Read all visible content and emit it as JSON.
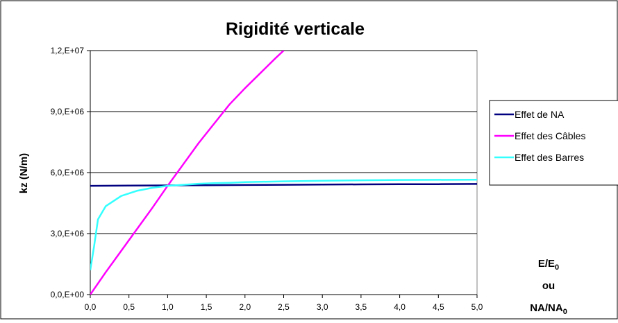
{
  "chart_data": {
    "type": "line",
    "title": "Rigidité verticale",
    "ylabel": "kz (N/m)",
    "xlabel_lines": [
      {
        "main": "E/E",
        "sub": "0"
      },
      {
        "main": "ou",
        "sub": ""
      },
      {
        "main": "NA/NA",
        "sub": "0"
      }
    ],
    "xlim": [
      0,
      5
    ],
    "ylim": [
      0,
      12000000
    ],
    "x_ticks": [
      0,
      0.5,
      1,
      1.5,
      2,
      2.5,
      3,
      3.5,
      4,
      4.5,
      5
    ],
    "x_tick_labels": [
      "0,0",
      "0,5",
      "1,0",
      "1,5",
      "2,0",
      "2,5",
      "3,0",
      "3,5",
      "4,0",
      "4,5",
      "5,0"
    ],
    "y_ticks": [
      0,
      3000000,
      6000000,
      9000000,
      12000000
    ],
    "y_tick_labels": [
      "0,0,E+00",
      "3,0,E+06",
      "6,0,E+06",
      "9,0,E+06",
      "1,2,E+07"
    ],
    "grid": "horizontal",
    "legend_position": "right",
    "series": [
      {
        "name": "Effet de NA",
        "color": "#000080",
        "x": [
          0,
          0.5,
          1,
          1.5,
          2,
          2.5,
          3,
          3.5,
          4,
          4.5,
          5
        ],
        "y": [
          5350000,
          5360000,
          5370000,
          5380000,
          5390000,
          5400000,
          5410000,
          5420000,
          5430000,
          5430000,
          5440000
        ]
      },
      {
        "name": "Effet des Câbles",
        "color": "#ff00ff",
        "x": [
          0,
          0.2,
          0.4,
          0.6,
          0.8,
          1.0,
          1.2,
          1.4,
          1.6,
          1.8,
          2.0,
          2.2,
          2.4,
          2.5
        ],
        "y": [
          0,
          1100000,
          2150000,
          3200000,
          4250000,
          5350000,
          6400000,
          7450000,
          8400000,
          9350000,
          10150000,
          10900000,
          11650000,
          12000000
        ]
      },
      {
        "name": "Effet des Barres",
        "color": "#33ffff",
        "x": [
          0,
          0.05,
          0.1,
          0.2,
          0.4,
          0.6,
          0.8,
          1.0,
          1.2,
          1.4,
          1.6,
          1.8,
          2.0,
          2.5,
          3.0,
          3.5,
          4.0,
          5.0
        ],
        "y": [
          1200000,
          2400000,
          3700000,
          4350000,
          4850000,
          5100000,
          5250000,
          5350000,
          5400000,
          5450000,
          5480000,
          5500000,
          5530000,
          5570000,
          5600000,
          5620000,
          5640000,
          5650000
        ]
      }
    ]
  }
}
